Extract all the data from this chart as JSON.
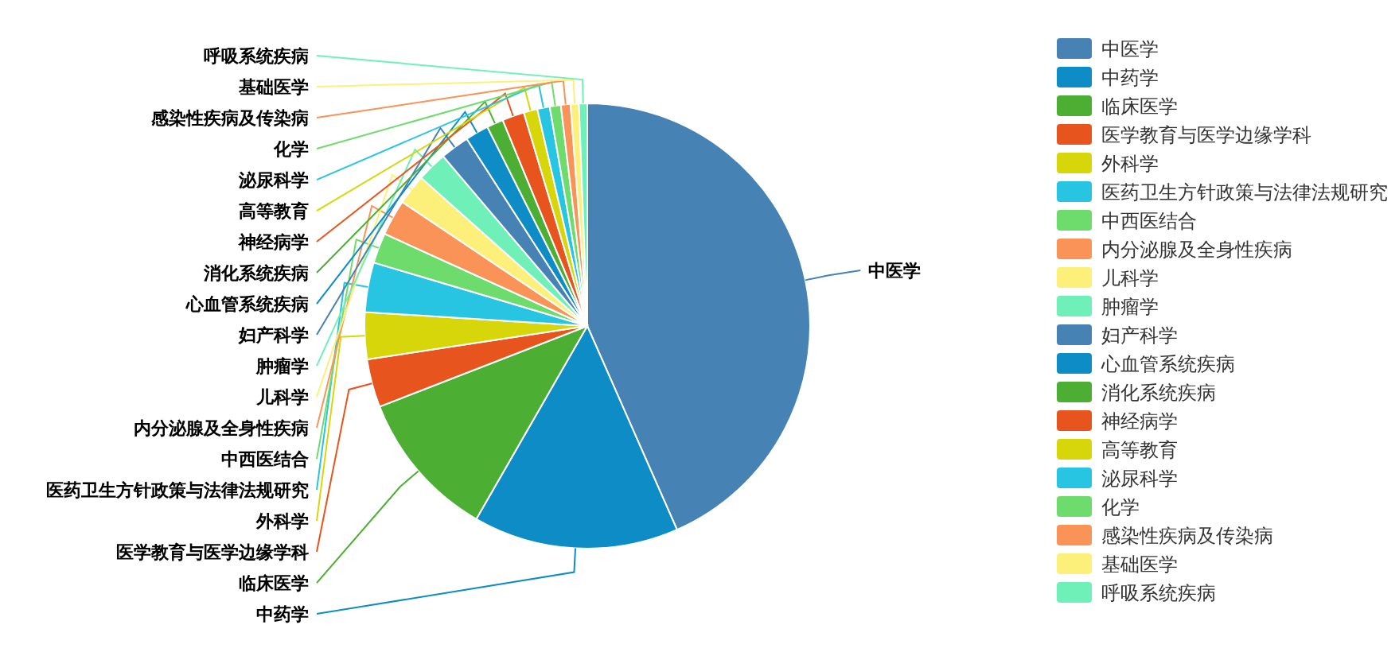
{
  "chart_data": {
    "type": "pie",
    "legend": "top right",
    "categories": [
      "中医学",
      "中药学",
      "临床医学",
      "医学教育与医学边缘学科",
      "外科学",
      "医药卫生方针政策与法律法规研究",
      "中西医结合",
      "内分泌腺及全身性疾病",
      "儿科学",
      "肿瘤学",
      "妇产科学",
      "心血管系统疾病",
      "消化系统疾病",
      "神经病学",
      "高等教育",
      "泌尿科学",
      "化学",
      "感染性疾病及传染病",
      "基础医学",
      "呼吸系统疾病"
    ],
    "values": [
      43.4,
      14.9,
      10.8,
      3.5,
      3.4,
      3.6,
      2.2,
      2.6,
      2.2,
      2.2,
      2.1,
      1.7,
      1.2,
      1.6,
      1.0,
      0.9,
      0.8,
      0.7,
      0.6,
      0.6
    ],
    "colors": [
      "#4682b4",
      "#0e8cc6",
      "#4cae33",
      "#e8541e",
      "#d6d60a",
      "#27c5e2",
      "#6ddc6d",
      "#f99358",
      "#fdf07a",
      "#6ef0b8",
      "#4682b4",
      "#0e8cc6",
      "#4cae33",
      "#e8541e",
      "#d6d60a",
      "#27c5e2",
      "#6ddc6d",
      "#f99358",
      "#fdf07a",
      "#6ef0b8"
    ]
  }
}
